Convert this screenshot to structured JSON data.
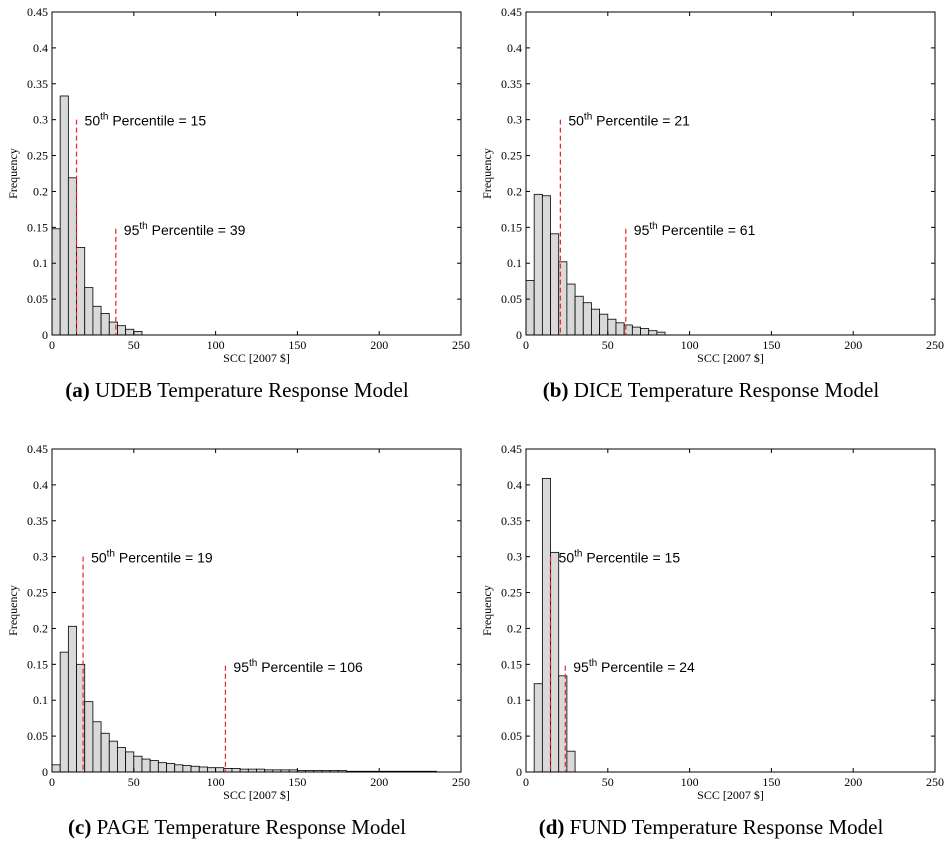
{
  "chart_data": [
    {
      "type": "bar",
      "panel_letter": "(a)",
      "caption": "UDEB Temperature Response Model",
      "xlabel": "SCC [2007 $]",
      "ylabel": "Frequency",
      "xlim": [
        0,
        250
      ],
      "ylim": [
        0,
        0.45
      ],
      "xticks": [
        "0",
        "50",
        "100",
        "150",
        "200",
        "250"
      ],
      "yticks": [
        "0",
        "0.05",
        "0.1",
        "0.15",
        "0.2",
        "0.25",
        "0.3",
        "0.35",
        "0.4",
        "0.45"
      ],
      "bin_width": 5,
      "bin_start": 0,
      "values": [
        0.148,
        0.333,
        0.219,
        0.122,
        0.066,
        0.04,
        0.03,
        0.018,
        0.013,
        0.008,
        0.005
      ],
      "percentiles": [
        {
          "x": 15,
          "line_top": 0.3,
          "num": "50",
          "sup": "th",
          "text": " Percentile = 15"
        },
        {
          "x": 39,
          "line_top": 0.148,
          "num": "95",
          "sup": "th",
          "text": " Percentile = 39"
        }
      ],
      "colors": {
        "bar_fill": "#d9d9d9",
        "bar_stroke": "#000000",
        "percentile_line": "#e8242a"
      }
    },
    {
      "type": "bar",
      "panel_letter": "(b)",
      "caption": "DICE Temperature Response Model",
      "xlabel": "SCC [2007 $]",
      "ylabel": "Frequency",
      "xlim": [
        0,
        250
      ],
      "ylim": [
        0,
        0.45
      ],
      "xticks": [
        "0",
        "50",
        "100",
        "150",
        "200",
        "250"
      ],
      "yticks": [
        "0",
        "0.05",
        "0.1",
        "0.15",
        "0.2",
        "0.25",
        "0.3",
        "0.35",
        "0.4",
        "0.45"
      ],
      "bin_width": 5,
      "bin_start": 0,
      "values": [
        0.076,
        0.196,
        0.194,
        0.141,
        0.102,
        0.071,
        0.054,
        0.045,
        0.036,
        0.029,
        0.022,
        0.017,
        0.014,
        0.011,
        0.009,
        0.006,
        0.004
      ],
      "percentiles": [
        {
          "x": 21,
          "line_top": 0.3,
          "num": "50",
          "sup": "th",
          "text": " Percentile = 21"
        },
        {
          "x": 61,
          "line_top": 0.148,
          "num": "95",
          "sup": "th",
          "text": " Percentile = 61"
        }
      ],
      "colors": {
        "bar_fill": "#d9d9d9",
        "bar_stroke": "#000000",
        "percentile_line": "#e8242a"
      }
    },
    {
      "type": "bar",
      "panel_letter": "(c)",
      "caption": "PAGE Temperature Response Model",
      "xlabel": "SCC [2007 $]",
      "ylabel": "Frequency",
      "xlim": [
        0,
        250
      ],
      "ylim": [
        0,
        0.45
      ],
      "xticks": [
        "0",
        "50",
        "100",
        "150",
        "200",
        "250"
      ],
      "yticks": [
        "0",
        "0.05",
        "0.1",
        "0.15",
        "0.2",
        "0.25",
        "0.3",
        "0.35",
        "0.4",
        "0.45"
      ],
      "bin_width": 5,
      "bin_start": 0,
      "values": [
        0.01,
        0.167,
        0.203,
        0.15,
        0.098,
        0.07,
        0.054,
        0.043,
        0.034,
        0.028,
        0.022,
        0.018,
        0.016,
        0.013,
        0.012,
        0.01,
        0.009,
        0.008,
        0.007,
        0.006,
        0.006,
        0.005,
        0.005,
        0.004,
        0.004,
        0.004,
        0.003,
        0.003,
        0.003,
        0.003,
        0.002,
        0.002,
        0.002,
        0.002,
        0.002,
        0.002,
        0.001,
        0.001,
        0.001,
        0.001,
        0.001,
        0.001,
        0.001,
        0.001,
        0.001,
        0.001,
        0.001
      ],
      "percentiles": [
        {
          "x": 19,
          "line_top": 0.3,
          "num": "50",
          "sup": "th",
          "text": " Percentile = 19"
        },
        {
          "x": 106,
          "line_top": 0.148,
          "num": "95",
          "sup": "th",
          "text": " Percentile = 106"
        }
      ],
      "colors": {
        "bar_fill": "#d9d9d9",
        "bar_stroke": "#000000",
        "percentile_line": "#e8242a"
      }
    },
    {
      "type": "bar",
      "panel_letter": "(d)",
      "caption": "FUND Temperature Response Model",
      "xlabel": "SCC [2007 $]",
      "ylabel": "Frequency",
      "xlim": [
        0,
        250
      ],
      "ylim": [
        0,
        0.45
      ],
      "xticks": [
        "0",
        "50",
        "100",
        "150",
        "200",
        "250"
      ],
      "yticks": [
        "0",
        "0.05",
        "0.1",
        "0.15",
        "0.2",
        "0.25",
        "0.3",
        "0.35",
        "0.4",
        "0.45"
      ],
      "bin_width": 5,
      "bin_start": 5,
      "values": [
        0.123,
        0.409,
        0.306,
        0.134,
        0.029
      ],
      "percentiles": [
        {
          "x": 15,
          "line_top": 0.3,
          "num": "50",
          "sup": "th",
          "text": " Percentile = 15"
        },
        {
          "x": 24,
          "line_top": 0.148,
          "num": "95",
          "sup": "th",
          "text": " Percentile = 24"
        }
      ],
      "colors": {
        "bar_fill": "#d9d9d9",
        "bar_stroke": "#000000",
        "percentile_line": "#e8242a"
      }
    }
  ]
}
